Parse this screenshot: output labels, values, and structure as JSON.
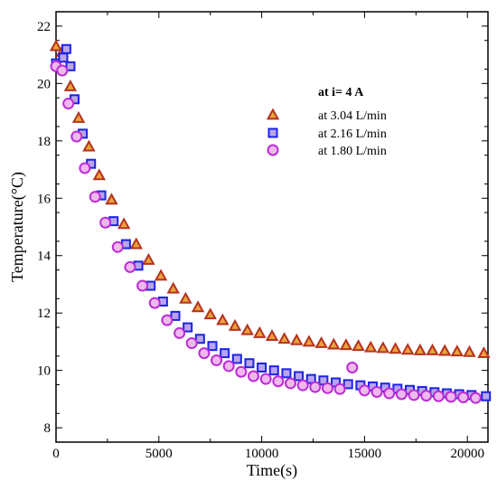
{
  "chart_data": {
    "type": "scatter",
    "title": "",
    "xlabel": "Time(s)",
    "ylabel": "Temperature(°C)",
    "xlim": [
      0,
      21000
    ],
    "ylim": [
      7.5,
      22.5
    ],
    "xticks": [
      0,
      5000,
      10000,
      15000,
      20000
    ],
    "yticks": [
      8,
      10,
      12,
      14,
      16,
      18,
      20,
      22
    ],
    "grid": false,
    "legend": {
      "title": "at i= 4 A",
      "placement": "upper-right"
    },
    "series": [
      {
        "name": "at 3.04 L/min",
        "marker": "triangle",
        "color": "#b5321f",
        "fill": "#e8a33a",
        "x": [
          0,
          300,
          700,
          1100,
          1600,
          2100,
          2700,
          3300,
          3900,
          4500,
          5100,
          5700,
          6300,
          6900,
          7500,
          8100,
          8700,
          9300,
          9900,
          10500,
          11100,
          11700,
          12300,
          12900,
          13500,
          14100,
          14700,
          15300,
          15900,
          16500,
          17100,
          17700,
          18300,
          18900,
          19500,
          20100,
          20800
        ],
        "y": [
          21.3,
          21.1,
          19.9,
          18.8,
          17.8,
          16.8,
          15.95,
          15.1,
          14.4,
          13.85,
          13.3,
          12.85,
          12.5,
          12.2,
          11.95,
          11.75,
          11.55,
          11.4,
          11.3,
          11.2,
          11.1,
          11.05,
          11.0,
          10.95,
          10.9,
          10.88,
          10.85,
          10.8,
          10.78,
          10.75,
          10.72,
          10.7,
          10.7,
          10.68,
          10.66,
          10.64,
          10.6
        ]
      },
      {
        "name": "at 2.16 L/min",
        "marker": "square",
        "color": "#1b22e8",
        "fill": "#b9a5e8",
        "x": [
          0,
          350,
          500,
          700,
          900,
          1300,
          1700,
          2200,
          2800,
          3400,
          4000,
          4600,
          5200,
          5800,
          6400,
          7000,
          7600,
          8200,
          8800,
          9400,
          10000,
          10600,
          11200,
          11800,
          12400,
          13000,
          13600,
          14200,
          14800,
          15400,
          16000,
          16600,
          17200,
          17800,
          18400,
          19000,
          19600,
          20200,
          20900
        ],
        "y": [
          20.7,
          20.9,
          21.2,
          20.6,
          19.45,
          18.25,
          17.2,
          16.1,
          15.2,
          14.4,
          13.65,
          12.95,
          12.4,
          11.9,
          11.5,
          11.1,
          10.85,
          10.6,
          10.4,
          10.25,
          10.1,
          10.0,
          9.9,
          9.8,
          9.7,
          9.65,
          9.58,
          9.52,
          9.48,
          9.44,
          9.4,
          9.36,
          9.32,
          9.28,
          9.24,
          9.2,
          9.17,
          9.14,
          9.1
        ]
      },
      {
        "name": "at 1.80 L/min",
        "marker": "circle",
        "color": "#bb2bd6",
        "fill": "#efb9ee",
        "x": [
          0,
          300,
          600,
          1000,
          1400,
          1900,
          2400,
          3000,
          3600,
          4200,
          4800,
          5400,
          6000,
          6600,
          7200,
          7800,
          8400,
          9000,
          9600,
          10200,
          10800,
          11400,
          12000,
          12600,
          13200,
          13800,
          14400,
          15000,
          15600,
          16200,
          16800,
          17400,
          18000,
          18600,
          19200,
          19800,
          20400
        ],
        "y": [
          20.6,
          20.45,
          19.3,
          18.15,
          17.05,
          16.05,
          15.15,
          14.3,
          13.6,
          12.95,
          12.35,
          11.75,
          11.3,
          10.95,
          10.6,
          10.35,
          10.15,
          9.95,
          9.8,
          9.7,
          9.62,
          9.55,
          9.48,
          9.42,
          9.38,
          9.35,
          10.1,
          9.3,
          9.25,
          9.2,
          9.17,
          9.14,
          9.12,
          9.1,
          9.08,
          9.06,
          9.04
        ]
      }
    ]
  }
}
